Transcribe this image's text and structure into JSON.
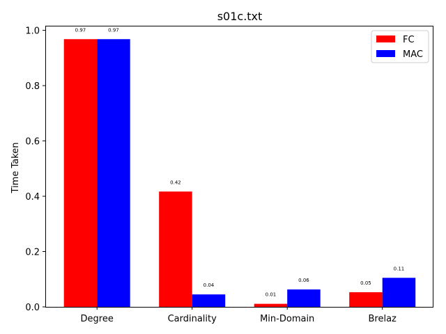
{
  "chart_data": {
    "type": "bar",
    "title": "s01c.txt",
    "xlabel": "",
    "ylabel": "Time Taken",
    "categories": [
      "Degree",
      "Cardinality",
      "Min-Domain",
      "Brelaz"
    ],
    "series": [
      {
        "name": "FC",
        "color": "#ff0000",
        "values": [
          0.968,
          0.417,
          0.011,
          0.053
        ],
        "labels": [
          "0.97",
          "0.42",
          "0.01",
          "0.05"
        ]
      },
      {
        "name": "MAC",
        "color": "#0000ff",
        "values": [
          0.968,
          0.045,
          0.063,
          0.105
        ],
        "labels": [
          "0.97",
          "0.04",
          "0.06",
          "0.11"
        ]
      }
    ],
    "ylim": [
      0,
      1.0165
    ],
    "yticks": [
      "0.0",
      "0.2",
      "0.4",
      "0.6",
      "0.8",
      "1.0"
    ],
    "ytick_values": [
      0,
      0.2,
      0.4,
      0.6,
      0.8,
      1.0
    ],
    "grid": false,
    "legend": "top-right"
  }
}
